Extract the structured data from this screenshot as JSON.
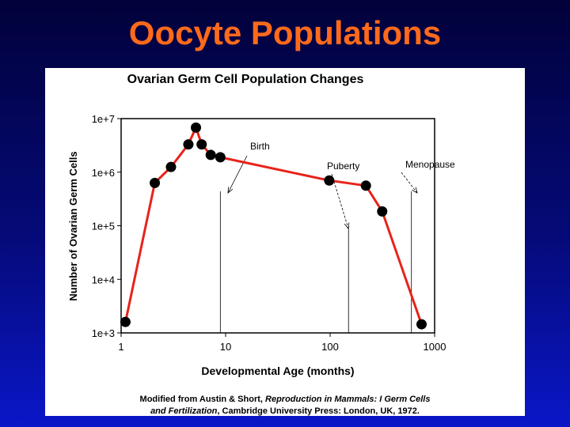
{
  "slide": {
    "title": "Oocyte Populations"
  },
  "caption": {
    "prefix": "Modified from Austin & Short, ",
    "book": "Reproduction in Mammals: I Germ Cells",
    "book2": "and Fertilization",
    "suffix": ", Cambridge University Press: London, UK, 1972."
  },
  "colors": {
    "line": "#e8231a",
    "marker": "#000000",
    "title": "#ff6a1a",
    "panel": "#ffffff"
  },
  "chart_data": {
    "type": "line",
    "title": "Ovarian Germ Cell Population Changes",
    "xlabel": "Developmental Age (months)",
    "ylabel": "Number of Ovarian Germ Cells",
    "xscale": "log",
    "yscale": "log",
    "xlim": [
      1,
      1000
    ],
    "ylim": [
      1000,
      10000000
    ],
    "xticks": [
      1,
      10,
      100,
      1000
    ],
    "xtick_labels": [
      "1",
      "10",
      "100",
      "1000"
    ],
    "yticks": [
      1000,
      10000,
      100000,
      1000000,
      10000000
    ],
    "ytick_labels": [
      "1e+3",
      "1e+4",
      "1e+5",
      "1e+6",
      "1e+7"
    ],
    "grid": false,
    "series": [
      {
        "x": [
          1.1,
          2.1,
          3.0,
          4.4,
          5.2,
          5.9,
          7.2,
          8.9,
          98,
          220,
          315,
          750
        ],
        "y": [
          1600,
          630000,
          1250000,
          3300000,
          6800000,
          3300000,
          2100000,
          1900000,
          700000,
          560000,
          185000,
          1450
        ]
      }
    ],
    "annotations": [
      {
        "text": "Birth",
        "x": 9,
        "y": 10000000
      },
      {
        "text": "Puberty",
        "x": 150,
        "y": 10000000
      },
      {
        "text": "Menopause",
        "x": 600,
        "y": 10000000
      }
    ]
  }
}
